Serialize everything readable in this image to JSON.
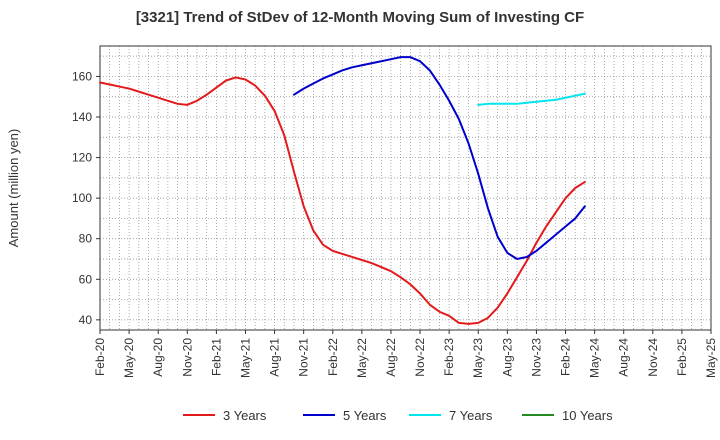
{
  "chart_data": {
    "type": "line",
    "title": "[3321]  Trend of StDev of 12-Month Moving Sum of Investing CF",
    "ylabel": "Amount (million yen)",
    "xlabel": "",
    "ylim": [
      35,
      175
    ],
    "yticks": [
      40,
      60,
      80,
      100,
      120,
      140,
      160
    ],
    "x_tick_labels": [
      "Feb-20",
      "May-20",
      "Aug-20",
      "Nov-20",
      "Feb-21",
      "May-21",
      "Aug-21",
      "Nov-21",
      "Feb-22",
      "May-22",
      "Aug-22",
      "Nov-22",
      "Feb-23",
      "May-23",
      "Aug-23",
      "Nov-23",
      "Feb-24",
      "May-24",
      "Aug-24",
      "Nov-24",
      "Feb-25",
      "May-25"
    ],
    "x_start": "2020-02",
    "grid": true,
    "legend_position": "bottom",
    "series": [
      {
        "name": "3 Years",
        "color": "#e31a1c",
        "values": [
          157,
          156,
          155,
          154,
          152.5,
          151,
          149.5,
          148,
          146.5,
          146,
          148,
          151,
          154.5,
          158,
          159.5,
          158.5,
          155.5,
          150.5,
          143,
          131,
          113,
          96,
          84,
          77,
          74,
          72.5,
          71,
          69.5,
          68,
          66,
          64,
          61,
          57.5,
          53,
          47.5,
          44,
          42,
          38.5,
          38,
          38.5,
          41,
          46,
          53,
          61,
          69,
          78,
          86,
          93,
          100,
          105,
          108
        ]
      },
      {
        "name": "5 Years",
        "color": "#0000cd",
        "values": [
          null,
          null,
          null,
          null,
          null,
          null,
          null,
          null,
          null,
          null,
          null,
          null,
          null,
          null,
          null,
          null,
          null,
          null,
          null,
          null,
          151,
          154,
          156.5,
          159,
          161,
          163,
          164.5,
          165.5,
          166.5,
          167.5,
          168.5,
          169.5,
          169.5,
          167.5,
          163,
          156,
          148,
          139,
          127,
          112,
          95,
          81,
          73,
          70,
          71,
          74,
          78,
          82,
          86,
          90,
          96
        ]
      },
      {
        "name": "7 Years",
        "color": "#00e5ee",
        "values": [
          null,
          null,
          null,
          null,
          null,
          null,
          null,
          null,
          null,
          null,
          null,
          null,
          null,
          null,
          null,
          null,
          null,
          null,
          null,
          null,
          null,
          null,
          null,
          null,
          null,
          null,
          null,
          null,
          null,
          null,
          null,
          null,
          null,
          null,
          null,
          null,
          null,
          null,
          null,
          146,
          146.5,
          146.5,
          146.5,
          146.5,
          147,
          147.5,
          148,
          148.5,
          149.5,
          150.5,
          151.5
        ]
      },
      {
        "name": "10 Years",
        "color": "#228b22",
        "values": []
      }
    ]
  }
}
